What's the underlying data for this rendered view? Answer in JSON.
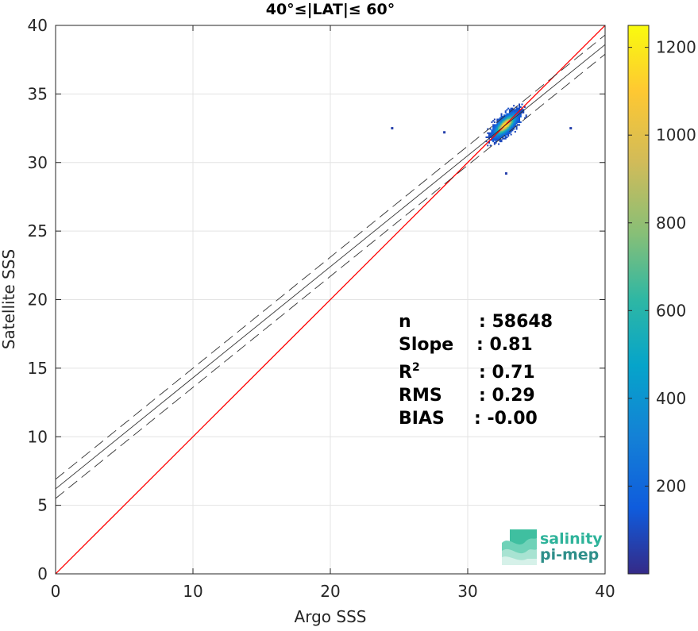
{
  "chart_data": {
    "type": "heatmap",
    "title": "40°≤|LAT|≤ 60°",
    "xlabel": "Argo SSS",
    "ylabel": "Satellite SSS",
    "xlim": [
      0,
      40
    ],
    "ylim": [
      0,
      40
    ],
    "xticks": [
      0,
      10,
      20,
      30,
      40
    ],
    "yticks": [
      0,
      5,
      10,
      15,
      20,
      25,
      30,
      35,
      40
    ],
    "grid": true,
    "colorbar": {
      "min": 0,
      "max": 1250,
      "ticks": [
        200,
        400,
        600,
        800,
        1000,
        1200
      ],
      "colormap": "parula"
    },
    "identity_line": {
      "x": [
        0,
        40
      ],
      "y": [
        0,
        40
      ],
      "color": "#ff0000"
    },
    "regression_line": {
      "slope": 0.81,
      "intercept": 6.2,
      "color": "#333333"
    },
    "confidence_band_offset": 0.7,
    "density_cluster": {
      "center": [
        32.7,
        32.7
      ],
      "x_range": [
        30.5,
        35.0
      ],
      "y_range": [
        30.8,
        34.8
      ],
      "peak_count": 1240,
      "outliers": [
        [
          24.5,
          32.5
        ],
        [
          37.5,
          32.5
        ],
        [
          28.3,
          32.2
        ],
        [
          32.8,
          29.2
        ]
      ]
    },
    "stats": [
      {
        "label": "n",
        "value": ": 58648"
      },
      {
        "label": "Slope",
        "value": ": 0.81"
      },
      {
        "label": "R",
        "sup": "2",
        "value": ": 0.71"
      },
      {
        "label": "RMS",
        "value": ": 0.29"
      },
      {
        "label": "BIAS",
        "value": ": -0.00"
      }
    ]
  },
  "logo": {
    "line1": "salinity",
    "line2": "pi-mep"
  }
}
